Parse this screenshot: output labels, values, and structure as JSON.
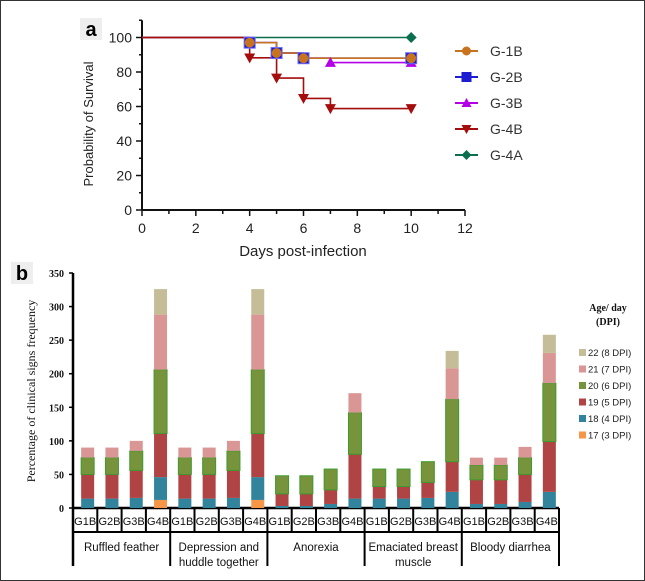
{
  "chart_data": [
    {
      "panel": "a",
      "type": "line",
      "subtype": "kaplan-meier step",
      "xlabel": "Days post-infection",
      "ylabel": "Probability of Survival",
      "xlim": [
        0,
        12
      ],
      "ylim": [
        0,
        110
      ],
      "xticks": [
        0,
        2,
        4,
        6,
        8,
        10,
        12
      ],
      "yticks": [
        0,
        20,
        40,
        60,
        80,
        100
      ],
      "legend_position": "right",
      "series": [
        {
          "name": "G-1B",
          "color": "#c8731e",
          "marker": "circle",
          "x": [
            0,
            4,
            5,
            6,
            10
          ],
          "y": [
            100,
            97,
            91,
            88,
            88
          ]
        },
        {
          "name": "G-2B",
          "color": "#1c1cd0",
          "marker": "square",
          "x": [
            0,
            4,
            5,
            6,
            10
          ],
          "y": [
            100,
            97,
            91,
            88,
            88
          ]
        },
        {
          "name": "G-3B",
          "color": "#b400e6",
          "marker": "triangle-up",
          "x": [
            0,
            4,
            5,
            6,
            7,
            10
          ],
          "y": [
            100,
            97,
            91,
            88,
            85.5,
            85.5
          ],
          "markers_at": [
            7,
            10
          ]
        },
        {
          "name": "G-4B",
          "color": "#a50d0d",
          "marker": "triangle-down",
          "x": [
            0,
            4,
            5,
            6,
            7,
            10
          ],
          "y": [
            100,
            88.2,
            76.5,
            64.7,
            58.8,
            58.8
          ]
        },
        {
          "name": "G-4A",
          "color": "#0b6e4f",
          "marker": "diamond",
          "x": [
            0,
            10
          ],
          "y": [
            100,
            100
          ]
        }
      ]
    },
    {
      "panel": "b",
      "type": "bar",
      "subtype": "stacked",
      "ylabel": "Percentage of clinical signs frequency",
      "ylim": [
        0,
        350
      ],
      "yticks": [
        0,
        50,
        100,
        150,
        200,
        250,
        300,
        350
      ],
      "legend_title": "Age/ day (DPI)",
      "legend_position": "right",
      "groups": [
        "Ruffled feather",
        "Depression and huddle together",
        "Anorexia",
        "Emaciated breast muscle",
        "Bloody diarrhea"
      ],
      "group_label_lines": [
        [
          "Ruffled feather"
        ],
        [
          "Depression and",
          "huddle together"
        ],
        [
          "Anorexia"
        ],
        [
          "Emaciated breast",
          "muscle"
        ],
        [
          "Bloody diarrhea"
        ]
      ],
      "subcategories": [
        "G1B",
        "G2B",
        "G3B",
        "G4B"
      ],
      "series": [
        {
          "name": "17 (3 DPI)",
          "color": "#f79646",
          "values": [
            [
              0,
              0,
              0,
              12
            ],
            [
              0,
              0,
              0,
              12
            ],
            [
              0,
              0,
              0,
              0
            ],
            [
              0,
              0,
              0,
              0
            ],
            [
              0,
              0,
              0,
              0
            ]
          ]
        },
        {
          "name": "18 (4 DPI)",
          "color": "#31849b",
          "values": [
            [
              14,
              14,
              15,
              34
            ],
            [
              14,
              14,
              15,
              34
            ],
            [
              3,
              3,
              6,
              14
            ],
            [
              14,
              14,
              15,
              24
            ],
            [
              6,
              6,
              9,
              24
            ]
          ]
        },
        {
          "name": "19 (5 DPI)",
          "color": "#b04444",
          "values": [
            [
              36,
              36,
              41,
              65
            ],
            [
              36,
              36,
              41,
              65
            ],
            [
              18,
              18,
              21,
              66
            ],
            [
              18,
              18,
              23,
              45
            ],
            [
              36,
              36,
              41,
              75
            ]
          ]
        },
        {
          "name": "20 (6 DPI)",
          "color": "#77933c",
          "values": [
            [
              25,
              25,
              29,
              95
            ],
            [
              25,
              25,
              29,
              95
            ],
            [
              27,
              27,
              31,
              62
            ],
            [
              26,
              26,
              31,
              93
            ],
            [
              22,
              22,
              25,
              87
            ]
          ]
        },
        {
          "name": "21 (7 DPI)",
          "color": "#da9694",
          "values": [
            [
              15,
              15,
              15,
              82
            ],
            [
              15,
              15,
              15,
              82
            ],
            [
              0,
              0,
              0,
              29
            ],
            [
              0,
              0,
              0,
              46
            ],
            [
              11,
              11,
              16,
              45
            ]
          ]
        },
        {
          "name": "22 (8 DPI)",
          "color": "#c4bd97",
          "values": [
            [
              0,
              0,
              0,
              38
            ],
            [
              0,
              0,
              0,
              38
            ],
            [
              0,
              0,
              0,
              0
            ],
            [
              0,
              0,
              0,
              26
            ],
            [
              0,
              0,
              0,
              27
            ]
          ]
        }
      ]
    }
  ],
  "panel_labels": {
    "a": "a",
    "b": "b"
  },
  "legend_b": {
    "title_line1": "Age/ day",
    "title_line2": "(DPI)"
  }
}
